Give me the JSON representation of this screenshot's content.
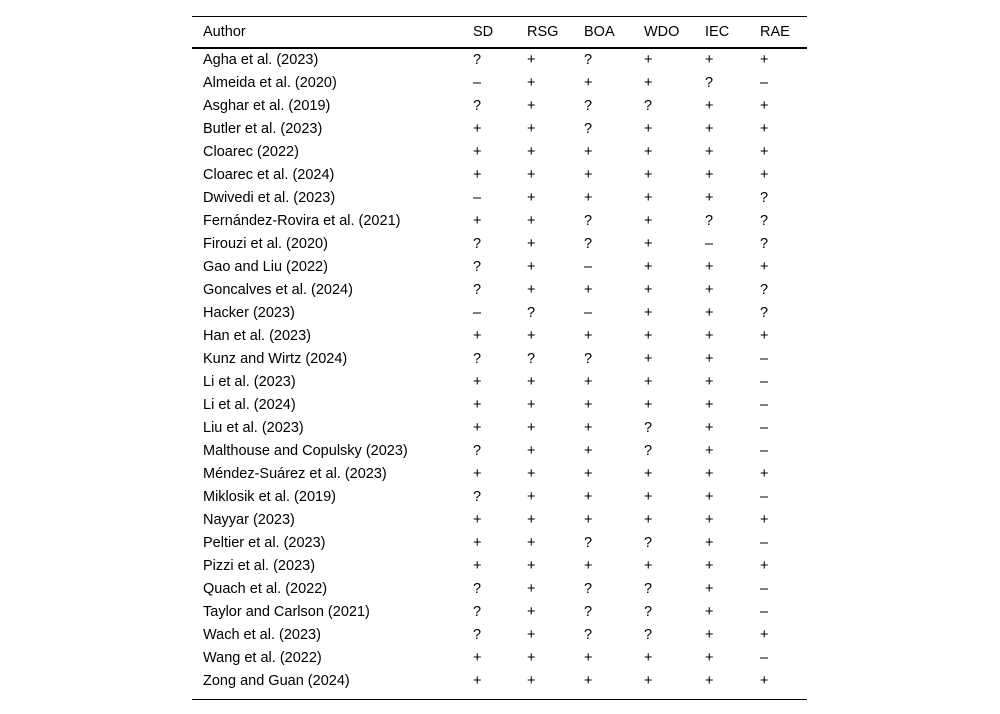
{
  "table": {
    "columns": [
      "Author",
      "SD",
      "RSG",
      "BOA",
      "WDO",
      "IEC",
      "RAE"
    ],
    "symbols": {
      "positive": "+",
      "negative": "–",
      "unclear": "?"
    },
    "rows": [
      {
        "author": "Agha et al. (2023)",
        "values": [
          "?",
          "+",
          "?",
          "+",
          "+",
          "+"
        ]
      },
      {
        "author": "Almeida et al. (2020)",
        "values": [
          "–",
          "+",
          "+",
          "+",
          "?",
          "–"
        ]
      },
      {
        "author": "Asghar et al. (2019)",
        "values": [
          "?",
          "+",
          "?",
          "?",
          "+",
          "+"
        ]
      },
      {
        "author": "Butler et al. (2023)",
        "values": [
          "+",
          "+",
          "?",
          "+",
          "+",
          "+"
        ]
      },
      {
        "author": "Cloarec (2022)",
        "values": [
          "+",
          "+",
          "+",
          "+",
          "+",
          "+"
        ]
      },
      {
        "author": "Cloarec et al. (2024)",
        "values": [
          "+",
          "+",
          "+",
          "+",
          "+",
          "+"
        ]
      },
      {
        "author": "Dwivedi et al. (2023)",
        "values": [
          "–",
          "+",
          "+",
          "+",
          "+",
          "?"
        ]
      },
      {
        "author": "Fernández-Rovira et al. (2021)",
        "values": [
          "+",
          "+",
          "?",
          "+",
          "?",
          "?"
        ]
      },
      {
        "author": "Firouzi et al. (2020)",
        "values": [
          "?",
          "+",
          "?",
          "+",
          "–",
          "?"
        ]
      },
      {
        "author": "Gao and Liu (2022)",
        "values": [
          "?",
          "+",
          "–",
          "+",
          "+",
          "+"
        ]
      },
      {
        "author": "Goncalves et al. (2024)",
        "values": [
          "?",
          "+",
          "+",
          "+",
          "+",
          "?"
        ]
      },
      {
        "author": "Hacker (2023)",
        "values": [
          "–",
          "?",
          "–",
          "+",
          "+",
          "?"
        ]
      },
      {
        "author": "Han et al. (2023)",
        "values": [
          "+",
          "+",
          "+",
          "+",
          "+",
          "+"
        ]
      },
      {
        "author": "Kunz and Wirtz (2024)",
        "values": [
          "?",
          "?",
          "?",
          "+",
          "+",
          "–"
        ]
      },
      {
        "author": "Li et al. (2023)",
        "values": [
          "+",
          "+",
          "+",
          "+",
          "+",
          "–"
        ]
      },
      {
        "author": "Li et al. (2024)",
        "values": [
          "+",
          "+",
          "+",
          "+",
          "+",
          "–"
        ]
      },
      {
        "author": "Liu et al. (2023)",
        "values": [
          "+",
          "+",
          "+",
          "?",
          "+",
          "–"
        ]
      },
      {
        "author": "Malthouse and Copulsky (2023)",
        "values": [
          "?",
          "+",
          "+",
          "?",
          "+",
          "–"
        ]
      },
      {
        "author": "Méndez-Suárez et al. (2023)",
        "values": [
          "+",
          "+",
          "+",
          "+",
          "+",
          "+"
        ]
      },
      {
        "author": "Miklosik et al. (2019)",
        "values": [
          "?",
          "+",
          "+",
          "+",
          "+",
          "–"
        ]
      },
      {
        "author": "Nayyar (2023)",
        "values": [
          "+",
          "+",
          "+",
          "+",
          "+",
          "+"
        ]
      },
      {
        "author": "Peltier et al. (2023)",
        "values": [
          "+",
          "+",
          "?",
          "?",
          "+",
          "–"
        ]
      },
      {
        "author": "Pizzi et al. (2023)",
        "values": [
          "+",
          "+",
          "+",
          "+",
          "+",
          "+"
        ]
      },
      {
        "author": "Quach et al. (2022)",
        "values": [
          "?",
          "+",
          "?",
          "?",
          "+",
          "–"
        ]
      },
      {
        "author": "Taylor and Carlson (2021)",
        "values": [
          "?",
          "+",
          "?",
          "?",
          "+",
          "–"
        ]
      },
      {
        "author": "Wach et al. (2023)",
        "values": [
          "?",
          "+",
          "?",
          "?",
          "+",
          "+"
        ]
      },
      {
        "author": "Wang et al. (2022)",
        "values": [
          "+",
          "+",
          "+",
          "+",
          "+",
          "–"
        ]
      },
      {
        "author": "Zong and Guan (2024)",
        "values": [
          "+",
          "+",
          "+",
          "+",
          "+",
          "+"
        ]
      }
    ]
  }
}
